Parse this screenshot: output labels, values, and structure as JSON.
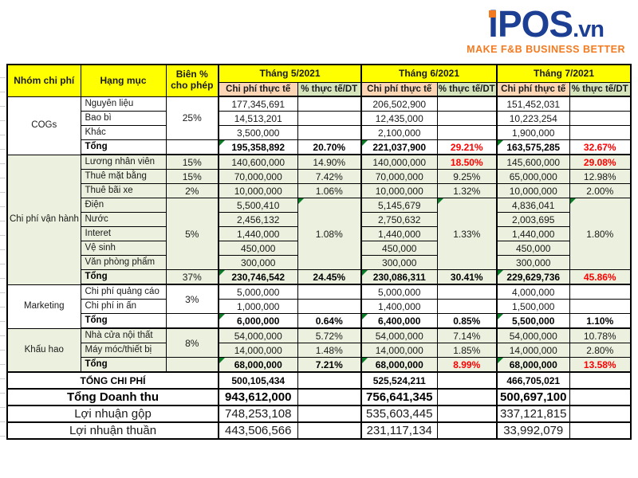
{
  "logo": {
    "i": "i",
    "pos": "POS",
    "vn": ".vn",
    "tagline": "MAKE F&B BUSINESS BETTER"
  },
  "colors": {
    "brand_blue": "#1c3f94",
    "brand_orange": "#f47a20",
    "header_yellow": "#ffff00",
    "subheader_tan": "#fbd5b4",
    "subheader_green": "#d6e4bc",
    "section_green": "#ebf1de",
    "alert_red": "#ff0000",
    "formula_triangle_green": "#0a7d27"
  },
  "table": {
    "header": {
      "col_group": "Nhóm chi phí",
      "col_item": "Hạng mục",
      "col_margin": "Biên % cho phép",
      "months": [
        "Tháng 5/2021",
        "Tháng 6/2021",
        "Tháng 7/2021"
      ],
      "sub_cost": "Chi phí thực tế",
      "sub_pct": "% thực tế/DT"
    },
    "body_rows": [
      {
        "bg": "white",
        "cells": [
          {
            "v": "COGs",
            "k": "g",
            "rs": 4
          },
          {
            "v": "Nguyên liệu",
            "k": "i"
          },
          {
            "v": "25%",
            "k": "m",
            "rs": 3
          },
          {
            "v": "177,345,691",
            "k": "n",
            "bl": 1
          },
          {
            "v": "",
            "k": "p"
          },
          {
            "v": "206,502,900",
            "k": "n",
            "bl": 1
          },
          {
            "v": "",
            "k": "p"
          },
          {
            "v": "151,452,031",
            "k": "n",
            "bl": 1
          },
          {
            "v": "",
            "k": "p"
          }
        ]
      },
      {
        "bg": "white",
        "cells": [
          {
            "v": "Bao bì",
            "k": "i"
          },
          {
            "v": "14,513,201",
            "k": "n",
            "bl": 1
          },
          {
            "v": "",
            "k": "p"
          },
          {
            "v": "12,435,000",
            "k": "n",
            "bl": 1
          },
          {
            "v": "",
            "k": "p"
          },
          {
            "v": "10,223,254",
            "k": "n",
            "bl": 1
          },
          {
            "v": "",
            "k": "p"
          }
        ]
      },
      {
        "bg": "white",
        "cells": [
          {
            "v": "Khác",
            "k": "i"
          },
          {
            "v": "3,500,000",
            "k": "n",
            "bl": 1
          },
          {
            "v": "",
            "k": "p"
          },
          {
            "v": "2,100,000",
            "k": "n",
            "bl": 1
          },
          {
            "v": "",
            "k": "p"
          },
          {
            "v": "1,900,000",
            "k": "n",
            "bl": 1
          },
          {
            "v": "",
            "k": "p"
          }
        ]
      },
      {
        "bg": "white",
        "end": 1,
        "cells": [
          {
            "v": "Tổng",
            "k": "i",
            "b": 1
          },
          {
            "v": "",
            "k": "m"
          },
          {
            "v": "195,358,892",
            "k": "n",
            "b": 1,
            "t": 1,
            "bl": 1
          },
          {
            "v": "20.70%",
            "k": "p",
            "b": 1
          },
          {
            "v": "221,037,900",
            "k": "n",
            "b": 1,
            "t": 1,
            "bl": 1
          },
          {
            "v": "29.21%",
            "k": "p",
            "b": 1,
            "r": 1
          },
          {
            "v": "163,575,285",
            "k": "n",
            "b": 1,
            "t": 1,
            "bl": 1
          },
          {
            "v": "32.67%",
            "k": "p",
            "b": 1,
            "r": 1
          }
        ]
      },
      {
        "bg": "green",
        "cells": [
          {
            "v": "Chi phí vận hành",
            "k": "g",
            "rs": 9
          },
          {
            "v": "Lương nhân viên",
            "k": "i"
          },
          {
            "v": "15%",
            "k": "m"
          },
          {
            "v": "140,600,000",
            "k": "n",
            "bl": 1
          },
          {
            "v": "14.90%",
            "k": "p"
          },
          {
            "v": "140,000,000",
            "k": "n",
            "bl": 1
          },
          {
            "v": "18.50%",
            "k": "p",
            "b": 1,
            "r": 1
          },
          {
            "v": "145,600,000",
            "k": "n",
            "bl": 1
          },
          {
            "v": "29.08%",
            "k": "p",
            "b": 1,
            "r": 1
          }
        ]
      },
      {
        "bg": "green",
        "cells": [
          {
            "v": "Thuê mặt bằng",
            "k": "i"
          },
          {
            "v": "15%",
            "k": "m"
          },
          {
            "v": "70,000,000",
            "k": "n",
            "bl": 1
          },
          {
            "v": "7.42%",
            "k": "p"
          },
          {
            "v": "70,000,000",
            "k": "n",
            "bl": 1
          },
          {
            "v": "9.25%",
            "k": "p"
          },
          {
            "v": "65,000,000",
            "k": "n",
            "bl": 1
          },
          {
            "v": "12.98%",
            "k": "p"
          }
        ]
      },
      {
        "bg": "green",
        "cells": [
          {
            "v": "Thuê bãi xe",
            "k": "i"
          },
          {
            "v": "2%",
            "k": "m"
          },
          {
            "v": "10,000,000",
            "k": "n",
            "bl": 1
          },
          {
            "v": "1.06%",
            "k": "p"
          },
          {
            "v": "10,000,000",
            "k": "n",
            "bl": 1
          },
          {
            "v": "1.32%",
            "k": "p"
          },
          {
            "v": "10,000,000",
            "k": "n",
            "bl": 1
          },
          {
            "v": "2.00%",
            "k": "p"
          }
        ]
      },
      {
        "bg": "green",
        "cells": [
          {
            "v": "Điện",
            "k": "i"
          },
          {
            "v": "5%",
            "k": "m",
            "rs": 5
          },
          {
            "v": "5,500,410",
            "k": "n",
            "bl": 1
          },
          {
            "v": "1.08%",
            "k": "p",
            "rs": 5,
            "t": 1
          },
          {
            "v": "5,145,679",
            "k": "n",
            "bl": 1
          },
          {
            "v": "1.33%",
            "k": "p",
            "rs": 5,
            "t": 1
          },
          {
            "v": "4,836,041",
            "k": "n",
            "bl": 1
          },
          {
            "v": "1.80%",
            "k": "p",
            "rs": 5,
            "t": 1
          }
        ]
      },
      {
        "bg": "green",
        "cells": [
          {
            "v": "Nước",
            "k": "i"
          },
          {
            "v": "2,456,132",
            "k": "n",
            "bl": 1
          },
          {
            "v": "2,750,632",
            "k": "n",
            "bl": 1
          },
          {
            "v": "2,003,695",
            "k": "n",
            "bl": 1
          }
        ]
      },
      {
        "bg": "green",
        "cells": [
          {
            "v": "Interet",
            "k": "i"
          },
          {
            "v": "1,440,000",
            "k": "n",
            "bl": 1
          },
          {
            "v": "1,440,000",
            "k": "n",
            "bl": 1
          },
          {
            "v": "1,440,000",
            "k": "n",
            "bl": 1
          }
        ]
      },
      {
        "bg": "green",
        "cells": [
          {
            "v": "Vệ sinh",
            "k": "i"
          },
          {
            "v": "450,000",
            "k": "n",
            "bl": 1
          },
          {
            "v": "450,000",
            "k": "n",
            "bl": 1
          },
          {
            "v": "450,000",
            "k": "n",
            "bl": 1
          }
        ]
      },
      {
        "bg": "green",
        "cells": [
          {
            "v": "Văn phòng phẩm",
            "k": "i"
          },
          {
            "v": "300,000",
            "k": "n",
            "bl": 1
          },
          {
            "v": "300,000",
            "k": "n",
            "bl": 1
          },
          {
            "v": "300,000",
            "k": "n",
            "bl": 1
          }
        ]
      },
      {
        "bg": "green",
        "end": 1,
        "cells": [
          {
            "v": "Tổng",
            "k": "i",
            "b": 1
          },
          {
            "v": "37%",
            "k": "m"
          },
          {
            "v": "230,746,542",
            "k": "n",
            "b": 1,
            "t": 1,
            "bl": 1
          },
          {
            "v": "24.45%",
            "k": "p",
            "b": 1
          },
          {
            "v": "230,086,311",
            "k": "n",
            "b": 1,
            "t": 1,
            "bl": 1
          },
          {
            "v": "30.41%",
            "k": "p",
            "b": 1
          },
          {
            "v": "229,629,736",
            "k": "n",
            "b": 1,
            "t": 1,
            "bl": 1
          },
          {
            "v": "45.86%",
            "k": "p",
            "b": 1,
            "r": 1
          }
        ]
      },
      {
        "bg": "white",
        "cells": [
          {
            "v": "Marketing",
            "k": "g",
            "rs": 3
          },
          {
            "v": "Chi phí quảng cáo",
            "k": "i"
          },
          {
            "v": "3%",
            "k": "m",
            "rs": 2
          },
          {
            "v": "5,000,000",
            "k": "n",
            "bl": 1
          },
          {
            "v": "",
            "k": "p"
          },
          {
            "v": "5,000,000",
            "k": "n",
            "bl": 1
          },
          {
            "v": "",
            "k": "p"
          },
          {
            "v": "4,000,000",
            "k": "n",
            "bl": 1
          },
          {
            "v": "",
            "k": "p"
          }
        ]
      },
      {
        "bg": "white",
        "cells": [
          {
            "v": "Chi phí in ấn",
            "k": "i"
          },
          {
            "v": "1,000,000",
            "k": "n",
            "bl": 1
          },
          {
            "v": "",
            "k": "p"
          },
          {
            "v": "1,400,000",
            "k": "n",
            "bl": 1
          },
          {
            "v": "",
            "k": "p"
          },
          {
            "v": "1,500,000",
            "k": "n",
            "bl": 1
          },
          {
            "v": "",
            "k": "p"
          }
        ]
      },
      {
        "bg": "white",
        "end": 1,
        "cells": [
          {
            "v": "Tổng",
            "k": "i",
            "b": 1
          },
          {
            "v": "",
            "k": "m"
          },
          {
            "v": "6,000,000",
            "k": "n",
            "b": 1,
            "t": 1,
            "bl": 1
          },
          {
            "v": "0.64%",
            "k": "p",
            "b": 1
          },
          {
            "v": "6,400,000",
            "k": "n",
            "b": 1,
            "t": 1,
            "bl": 1
          },
          {
            "v": "0.85%",
            "k": "p",
            "b": 1
          },
          {
            "v": "5,500,000",
            "k": "n",
            "b": 1,
            "t": 1,
            "bl": 1
          },
          {
            "v": "1.10%",
            "k": "p",
            "b": 1
          }
        ]
      },
      {
        "bg": "green",
        "cells": [
          {
            "v": "Khấu hao",
            "k": "g",
            "rs": 3
          },
          {
            "v": "Nhà cửa nội thất",
            "k": "i"
          },
          {
            "v": "8%",
            "k": "m",
            "rs": 2
          },
          {
            "v": "54,000,000",
            "k": "n",
            "bl": 1
          },
          {
            "v": "5.72%",
            "k": "p"
          },
          {
            "v": "54,000,000",
            "k": "n",
            "bl": 1
          },
          {
            "v": "7.14%",
            "k": "p"
          },
          {
            "v": "54,000,000",
            "k": "n",
            "bl": 1
          },
          {
            "v": "10.78%",
            "k": "p"
          }
        ]
      },
      {
        "bg": "green",
        "cells": [
          {
            "v": "Máy móc/thiết bị",
            "k": "i"
          },
          {
            "v": "14,000,000",
            "k": "n",
            "bl": 1
          },
          {
            "v": "1.48%",
            "k": "p"
          },
          {
            "v": "14,000,000",
            "k": "n",
            "bl": 1
          },
          {
            "v": "1.85%",
            "k": "p"
          },
          {
            "v": "14,000,000",
            "k": "n",
            "bl": 1
          },
          {
            "v": "2.80%",
            "k": "p"
          }
        ]
      },
      {
        "bg": "green",
        "end": 1,
        "cells": [
          {
            "v": "Tổng",
            "k": "i",
            "b": 1
          },
          {
            "v": "",
            "k": "m"
          },
          {
            "v": "68,000,000",
            "k": "n",
            "b": 1,
            "t": 1,
            "bl": 1
          },
          {
            "v": "7.21%",
            "k": "p",
            "b": 1
          },
          {
            "v": "68,000,000",
            "k": "n",
            "b": 1,
            "t": 1,
            "bl": 1
          },
          {
            "v": "8.99%",
            "k": "p",
            "b": 1,
            "r": 1
          },
          {
            "v": "68,000,000",
            "k": "n",
            "b": 1,
            "t": 1,
            "bl": 1
          },
          {
            "v": "13.58%",
            "k": "p",
            "b": 1,
            "r": 1
          }
        ]
      },
      {
        "bg": "white",
        "sum": 1,
        "cells": [
          {
            "v": "TỔNG CHI PHÍ",
            "k": "l",
            "cs": 3,
            "b": 1
          },
          {
            "v": "500,105,434",
            "k": "n",
            "b": 1,
            "bl": 1
          },
          {
            "v": "",
            "k": "p"
          },
          {
            "v": "525,524,211",
            "k": "n",
            "b": 1,
            "bl": 1
          },
          {
            "v": "",
            "k": "p"
          },
          {
            "v": "466,705,021",
            "k": "n",
            "b": 1,
            "bl": 1
          },
          {
            "v": "",
            "k": "p"
          }
        ]
      },
      {
        "bg": "white",
        "sum": 1,
        "cells": [
          {
            "v": "Tổng Doanh thu",
            "k": "l",
            "cs": 3,
            "b": 1,
            "lg": 1
          },
          {
            "v": "943,612,000",
            "k": "n",
            "b": 1,
            "lg": 1,
            "bl": 1
          },
          {
            "v": "",
            "k": "p"
          },
          {
            "v": "756,641,345",
            "k": "n",
            "b": 1,
            "lg": 1,
            "bl": 1
          },
          {
            "v": "",
            "k": "p"
          },
          {
            "v": "500,697,100",
            "k": "n",
            "b": 1,
            "lg": 1,
            "bl": 1
          },
          {
            "v": "",
            "k": "p"
          }
        ]
      },
      {
        "bg": "white",
        "sum": 1,
        "cells": [
          {
            "v": "Lợi nhuận gộp",
            "k": "l",
            "cs": 3,
            "lg": 1
          },
          {
            "v": "748,253,108",
            "k": "n",
            "lg": 1,
            "bl": 1
          },
          {
            "v": "",
            "k": "p"
          },
          {
            "v": "535,603,445",
            "k": "n",
            "lg": 1,
            "bl": 1
          },
          {
            "v": "",
            "k": "p"
          },
          {
            "v": "337,121,815",
            "k": "n",
            "lg": 1,
            "bl": 1
          },
          {
            "v": "",
            "k": "p"
          }
        ]
      },
      {
        "bg": "white",
        "sum": 1,
        "cells": [
          {
            "v": "Lợi nhuận thuần",
            "k": "l",
            "cs": 3,
            "lg": 1
          },
          {
            "v": "443,506,566",
            "k": "n",
            "lg": 1,
            "bl": 1
          },
          {
            "v": "",
            "k": "p"
          },
          {
            "v": "231,117,134",
            "k": "n",
            "lg": 1,
            "bl": 1
          },
          {
            "v": "",
            "k": "p"
          },
          {
            "v": "33,992,079",
            "k": "n",
            "lg": 1,
            "bl": 1
          },
          {
            "v": "",
            "k": "p"
          }
        ]
      }
    ]
  }
}
